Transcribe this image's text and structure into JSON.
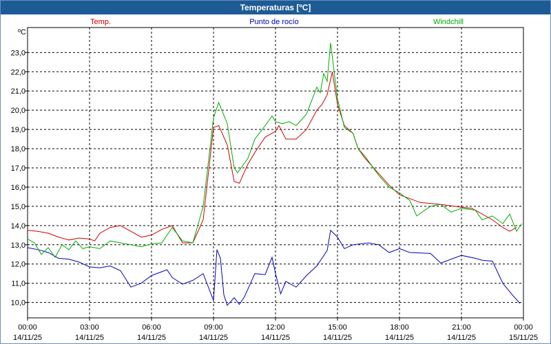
{
  "window": {
    "title": "Temperaturas [ºC]"
  },
  "colors": {
    "temp": "#cc0000",
    "dew": "#0000bb",
    "windchill": "#00aa00"
  },
  "chart_data": {
    "type": "line",
    "title": "Temperaturas [ºC]",
    "ylabel": "ºC",
    "ylim": [
      9.2,
      24.3
    ],
    "xlim": [
      "14/11/25 00:00",
      "15/11/25 00:00"
    ],
    "grid": true,
    "legend": "top",
    "y_ticks": [
      "10,0",
      "11,0",
      "12,0",
      "13,0",
      "14,0",
      "15,0",
      "16,0",
      "17,0",
      "18,0",
      "19,0",
      "20,0",
      "21,0",
      "22,0",
      "23,0"
    ],
    "x_ticks": [
      {
        "time": "00:00",
        "date": "14/11/25"
      },
      {
        "time": "03:00",
        "date": "14/11/25"
      },
      {
        "time": "06:00",
        "date": "14/11/25"
      },
      {
        "time": "09:00",
        "date": "14/11/25"
      },
      {
        "time": "12:00",
        "date": "14/11/25"
      },
      {
        "time": "15:00",
        "date": "14/11/25"
      },
      {
        "time": "18:00",
        "date": "14/11/25"
      },
      {
        "time": "21:00",
        "date": "14/11/25"
      },
      {
        "time": "00:00",
        "date": "15/11/25"
      }
    ],
    "series": [
      {
        "name": "Temp.",
        "key": "temp",
        "points": [
          [
            "00:00",
            13.75
          ],
          [
            "00:30",
            13.7
          ],
          [
            "01:00",
            13.6
          ],
          [
            "01:30",
            13.4
          ],
          [
            "02:00",
            13.25
          ],
          [
            "02:30",
            13.35
          ],
          [
            "03:00",
            13.3
          ],
          [
            "03:15",
            13.2
          ],
          [
            "03:30",
            13.6
          ],
          [
            "04:00",
            13.9
          ],
          [
            "04:30",
            14.0
          ],
          [
            "05:00",
            13.7
          ],
          [
            "05:30",
            13.4
          ],
          [
            "06:00",
            13.5
          ],
          [
            "06:30",
            13.8
          ],
          [
            "07:00",
            14.0
          ],
          [
            "07:30",
            13.1
          ],
          [
            "08:00",
            13.1
          ],
          [
            "08:30",
            14.3
          ],
          [
            "09:00",
            19.1
          ],
          [
            "09:15",
            19.2
          ],
          [
            "09:40",
            18.2
          ],
          [
            "10:00",
            16.3
          ],
          [
            "10:15",
            16.2
          ],
          [
            "10:40",
            17.2
          ],
          [
            "11:00",
            17.8
          ],
          [
            "11:30",
            18.6
          ],
          [
            "12:00",
            18.9
          ],
          [
            "12:10",
            19.2
          ],
          [
            "12:30",
            18.5
          ],
          [
            "13:00",
            18.5
          ],
          [
            "13:30",
            19.0
          ],
          [
            "14:00",
            20.0
          ],
          [
            "14:15",
            20.3
          ],
          [
            "14:30",
            20.8
          ],
          [
            "14:45",
            22.0
          ],
          [
            "15:00",
            20.3
          ],
          [
            "15:20",
            19.2
          ],
          [
            "15:45",
            18.8
          ],
          [
            "16:00",
            18.0
          ],
          [
            "16:20",
            17.5
          ],
          [
            "17:00",
            16.7
          ],
          [
            "17:30",
            16.1
          ],
          [
            "18:00",
            15.6
          ],
          [
            "18:30",
            15.4
          ],
          [
            "19:00",
            15.2
          ],
          [
            "20:00",
            15.1
          ],
          [
            "21:00",
            14.95
          ],
          [
            "21:30",
            14.9
          ],
          [
            "22:00",
            14.6
          ],
          [
            "22:30",
            14.3
          ],
          [
            "23:00",
            13.9
          ],
          [
            "23:20",
            13.7
          ],
          [
            "23:40",
            13.9
          ]
        ]
      },
      {
        "name": "Punto de rocío",
        "key": "dew",
        "points": [
          [
            "00:00",
            12.85
          ],
          [
            "00:30",
            12.75
          ],
          [
            "01:00",
            12.6
          ],
          [
            "01:30",
            12.3
          ],
          [
            "02:00",
            12.25
          ],
          [
            "02:30",
            12.1
          ],
          [
            "03:00",
            11.85
          ],
          [
            "03:30",
            11.8
          ],
          [
            "04:00",
            11.9
          ],
          [
            "04:30",
            11.65
          ],
          [
            "05:00",
            10.8
          ],
          [
            "05:30",
            11.0
          ],
          [
            "06:00",
            11.4
          ],
          [
            "06:30",
            11.6
          ],
          [
            "06:45",
            11.7
          ],
          [
            "07:00",
            11.3
          ],
          [
            "07:30",
            10.95
          ],
          [
            "08:00",
            11.15
          ],
          [
            "08:30",
            11.5
          ],
          [
            "09:00",
            10.1
          ],
          [
            "09:10",
            12.75
          ],
          [
            "09:20",
            12.3
          ],
          [
            "09:30",
            10.4
          ],
          [
            "09:40",
            9.85
          ],
          [
            "10:00",
            10.25
          ],
          [
            "10:15",
            9.9
          ],
          [
            "10:30",
            10.3
          ],
          [
            "11:00",
            11.5
          ],
          [
            "11:30",
            11.45
          ],
          [
            "11:50",
            12.35
          ],
          [
            "12:00",
            11.5
          ],
          [
            "12:15",
            10.45
          ],
          [
            "12:30",
            11.1
          ],
          [
            "13:00",
            10.8
          ],
          [
            "13:30",
            11.4
          ],
          [
            "14:00",
            11.9
          ],
          [
            "14:30",
            12.7
          ],
          [
            "14:40",
            13.75
          ],
          [
            "15:00",
            13.4
          ],
          [
            "15:20",
            12.8
          ],
          [
            "15:45",
            13.0
          ],
          [
            "16:30",
            13.1
          ],
          [
            "17:00",
            13.0
          ],
          [
            "17:30",
            12.6
          ],
          [
            "18:00",
            12.8
          ],
          [
            "18:30",
            12.6
          ],
          [
            "19:30",
            12.55
          ],
          [
            "20:00",
            12.05
          ],
          [
            "21:00",
            12.45
          ],
          [
            "21:40",
            12.3
          ],
          [
            "22:00",
            12.2
          ],
          [
            "22:30",
            12.15
          ],
          [
            "23:00",
            11.0
          ],
          [
            "23:30",
            10.35
          ],
          [
            "23:50",
            9.95
          ]
        ]
      },
      {
        "name": "Windchill",
        "key": "windchill",
        "points": [
          [
            "00:00",
            13.3
          ],
          [
            "00:20",
            13.1
          ],
          [
            "00:40",
            12.5
          ],
          [
            "01:00",
            12.85
          ],
          [
            "01:20",
            12.35
          ],
          [
            "01:40",
            13.0
          ],
          [
            "02:00",
            12.75
          ],
          [
            "02:20",
            13.2
          ],
          [
            "02:40",
            12.8
          ],
          [
            "03:00",
            12.9
          ],
          [
            "03:30",
            12.8
          ],
          [
            "04:00",
            13.2
          ],
          [
            "04:30",
            13.1
          ],
          [
            "05:00",
            13.0
          ],
          [
            "05:30",
            12.9
          ],
          [
            "06:00",
            13.05
          ],
          [
            "06:30",
            13.1
          ],
          [
            "07:00",
            13.9
          ],
          [
            "07:30",
            13.2
          ],
          [
            "08:00",
            13.1
          ],
          [
            "08:30",
            15.0
          ],
          [
            "09:00",
            19.6
          ],
          [
            "09:15",
            20.4
          ],
          [
            "09:40",
            19.3
          ],
          [
            "10:00",
            17.0
          ],
          [
            "10:10",
            16.75
          ],
          [
            "10:40",
            17.5
          ],
          [
            "11:00",
            18.5
          ],
          [
            "11:30",
            19.2
          ],
          [
            "11:50",
            19.7
          ],
          [
            "12:00",
            19.4
          ],
          [
            "12:20",
            19.3
          ],
          [
            "12:40",
            19.4
          ],
          [
            "13:00",
            19.2
          ],
          [
            "13:30",
            19.8
          ],
          [
            "14:00",
            21.2
          ],
          [
            "14:10",
            20.9
          ],
          [
            "14:20",
            21.9
          ],
          [
            "14:30",
            21.5
          ],
          [
            "14:40",
            23.5
          ],
          [
            "15:00",
            20.6
          ],
          [
            "15:20",
            19.1
          ],
          [
            "15:45",
            18.8
          ],
          [
            "16:00",
            18.0
          ],
          [
            "16:20",
            17.6
          ],
          [
            "17:00",
            16.6
          ],
          [
            "17:30",
            16.0
          ],
          [
            "18:00",
            15.7
          ],
          [
            "18:30",
            15.3
          ],
          [
            "18:50",
            14.5
          ],
          [
            "19:30",
            15.0
          ],
          [
            "20:00",
            15.1
          ],
          [
            "20:30",
            14.7
          ],
          [
            "21:00",
            14.9
          ],
          [
            "21:40",
            14.8
          ],
          [
            "22:00",
            14.3
          ],
          [
            "22:30",
            14.5
          ],
          [
            "23:00",
            14.1
          ],
          [
            "23:20",
            14.6
          ],
          [
            "23:40",
            13.7
          ],
          [
            "23:55",
            14.1
          ]
        ]
      }
    ]
  }
}
